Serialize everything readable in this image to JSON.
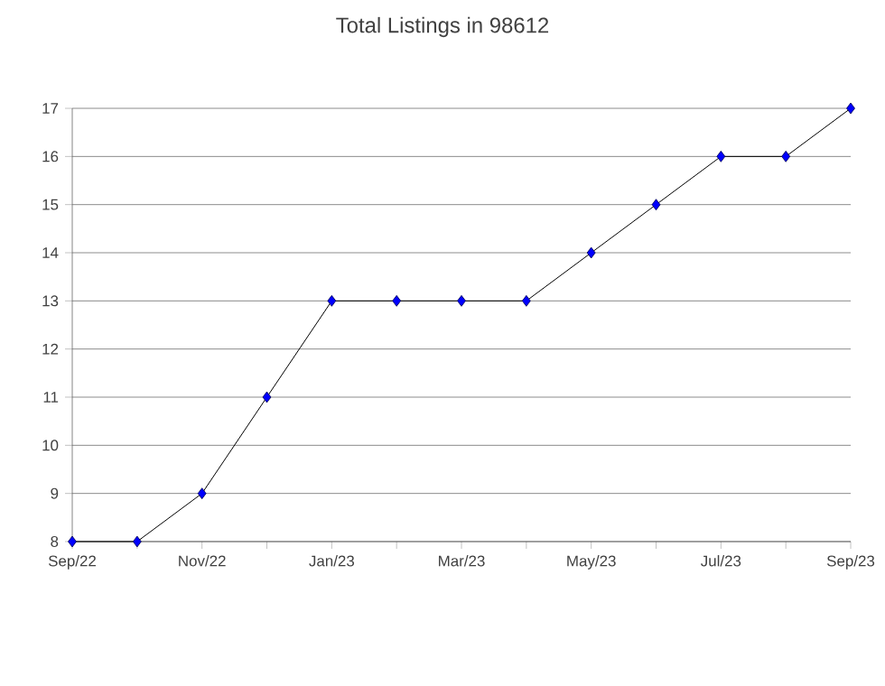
{
  "chart_data": {
    "type": "line",
    "title": "Total Listings in 98612",
    "categories": [
      "Sep/22",
      null,
      "Nov/22",
      null,
      "Jan/23",
      null,
      "Mar/23",
      null,
      "May/23",
      null,
      "Jul/23",
      null,
      "Sep/23"
    ],
    "series": [
      {
        "color": "#0000ff",
        "values": [
          8,
          8,
          9,
          11,
          13,
          13,
          13,
          13,
          14,
          15,
          16,
          16,
          17
        ]
      }
    ],
    "ylim": [
      8,
      17
    ],
    "yticks": [
      8,
      9,
      10,
      11,
      12,
      13,
      14,
      15,
      16,
      17
    ],
    "grid": "y",
    "marker": "diamond",
    "line_style": "solid"
  }
}
